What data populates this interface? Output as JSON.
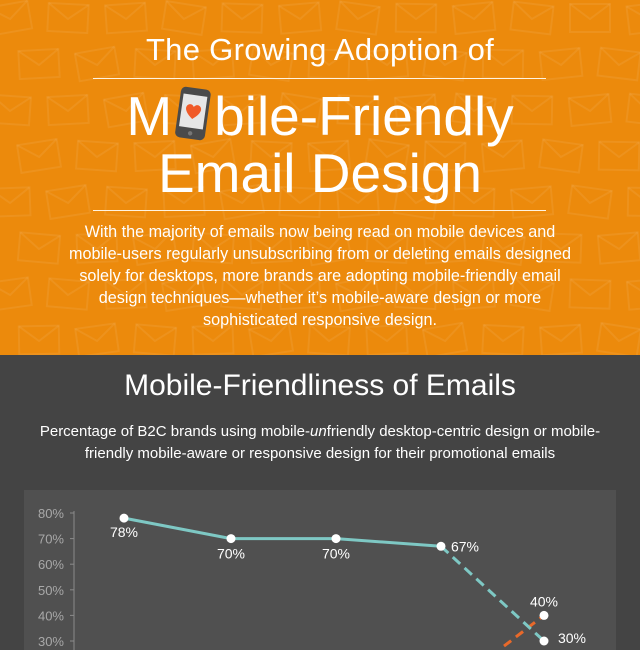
{
  "hero": {
    "title_line1": "The Growing Adoption of",
    "title_line2_prefix": "M",
    "title_line2_suffix": "bile-Friendly",
    "title_line3": "Email Design",
    "intro": "With the majority of emails now being read on mobile devices and mobile-users regularly unsubscribing from or deleting emails designed solely for desktops, more brands are adopting mobile-friendly email design techniques—whether it’s mobile-aware design or more sophisticated responsive design.",
    "colors": {
      "background": "#EC8A0C",
      "heart": "#F05A28",
      "phone": "#4a4a4a"
    },
    "icons": [
      "envelope-icon",
      "phone-heart-icon"
    ]
  },
  "section": {
    "title": "Mobile-Friendliness of Emails",
    "subtitle_before": "Percentage of B2C brands using mobile-",
    "subtitle_italic": "un",
    "subtitle_after": "friendly desktop-centric design or mobile-friendly mobile-aware or responsive design for their promotional emails"
  },
  "chart_data": {
    "type": "line",
    "ylim": [
      30,
      80
    ],
    "y_ticks": [
      "80%",
      "70%",
      "60%",
      "50%",
      "40%",
      "30%"
    ],
    "grid": false,
    "series": [
      {
        "color": "#7EC8C4",
        "values": [
          78,
          70,
          70,
          67,
          30
        ],
        "labels": [
          "78%",
          "70%",
          "70%",
          "67%",
          "30%"
        ],
        "dashed_from_index": 3
      },
      {
        "color": "#E8692A",
        "values": [
          null,
          null,
          null,
          null,
          40
        ],
        "labels": [
          "",
          "",
          "",
          "",
          "40%"
        ],
        "dashed": true
      }
    ]
  }
}
